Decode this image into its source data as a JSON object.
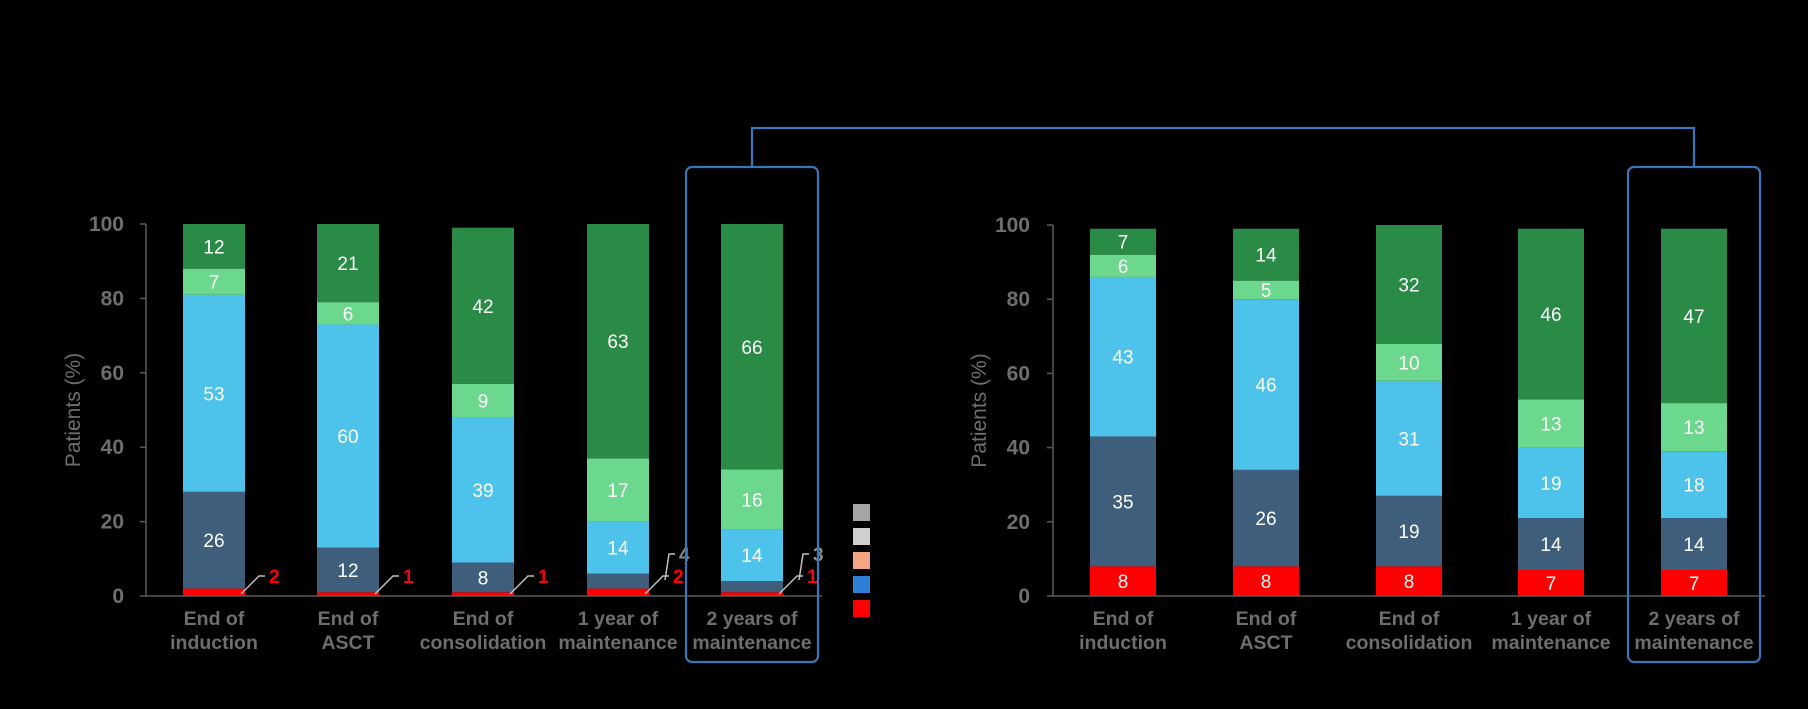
{
  "colors": {
    "seg0": "#ff0000",
    "seg1": "#3e5e7c",
    "seg2": "#4dc3eb",
    "seg3": "#6cd88d",
    "seg4": "#2a8b47",
    "axis": "#5a5a5a",
    "text": "#6e6e6e",
    "box": "#3a76b9",
    "legend": [
      "#a6a6a6",
      "#d0cece",
      "#f4a582",
      "#2f7ed8",
      "#ff0000"
    ]
  },
  "chart_data": [
    {
      "type": "bar",
      "stacked": true,
      "ylabel": "Patients (%)",
      "ylim": [
        0,
        100
      ],
      "yticks": [
        "0",
        "20",
        "40",
        "60",
        "80",
        "100"
      ],
      "categories": [
        [
          "End of",
          "induction"
        ],
        [
          "End of",
          "ASCT"
        ],
        [
          "End of",
          "consolidation"
        ],
        [
          "1 year of",
          "maintenance"
        ],
        [
          "2 years of",
          "maintenance"
        ]
      ],
      "series": [
        {
          "name": "red",
          "values": [
            2,
            1,
            1,
            2,
            1
          ],
          "labels": [
            "2",
            "1",
            "1",
            "2",
            "1"
          ],
          "label_position": "callout"
        },
        {
          "name": "dark-slate",
          "values": [
            26,
            12,
            8,
            4,
            3
          ],
          "labels": [
            "26",
            "12",
            "8",
            "4",
            "3"
          ],
          "label_inside": [
            true,
            true,
            true,
            false,
            false
          ]
        },
        {
          "name": "light-blue",
          "values": [
            53,
            60,
            39,
            14,
            14
          ],
          "labels": [
            "53",
            "60",
            "39",
            "14",
            "14"
          ]
        },
        {
          "name": "light-green",
          "values": [
            7,
            6,
            9,
            17,
            16
          ],
          "labels": [
            "7",
            "6",
            "9",
            "17",
            "16"
          ]
        },
        {
          "name": "dark-green",
          "values": [
            12,
            21,
            42,
            63,
            66
          ],
          "labels": [
            "12",
            "21",
            "42",
            "63",
            "66"
          ]
        }
      ],
      "highlighted_category": 4
    },
    {
      "type": "bar",
      "stacked": true,
      "ylabel": "Patients (%)",
      "ylim": [
        0,
        100
      ],
      "yticks": [
        "0",
        "20",
        "40",
        "60",
        "80",
        "100"
      ],
      "categories": [
        [
          "End of",
          "induction"
        ],
        [
          "End of",
          "ASCT"
        ],
        [
          "End of",
          "consolidation"
        ],
        [
          "1 year of",
          "maintenance"
        ],
        [
          "2 years of",
          "maintenance"
        ]
      ],
      "series": [
        {
          "name": "red",
          "values": [
            8,
            8,
            8,
            7,
            7
          ],
          "labels": [
            "8",
            "8",
            "8",
            "7",
            "7"
          ]
        },
        {
          "name": "dark-slate",
          "values": [
            35,
            26,
            19,
            14,
            14
          ],
          "labels": [
            "35",
            "26",
            "19",
            "14",
            "14"
          ]
        },
        {
          "name": "light-blue",
          "values": [
            43,
            46,
            31,
            19,
            18
          ],
          "labels": [
            "43",
            "46",
            "31",
            "19",
            "18"
          ]
        },
        {
          "name": "light-green",
          "values": [
            6,
            5,
            10,
            13,
            13
          ],
          "labels": [
            "6",
            "5",
            "10",
            "13",
            "13"
          ]
        },
        {
          "name": "dark-green",
          "values": [
            7,
            14,
            32,
            46,
            47
          ],
          "labels": [
            "7",
            "14",
            "32",
            "46",
            "47"
          ]
        }
      ],
      "highlighted_category": 4
    }
  ]
}
